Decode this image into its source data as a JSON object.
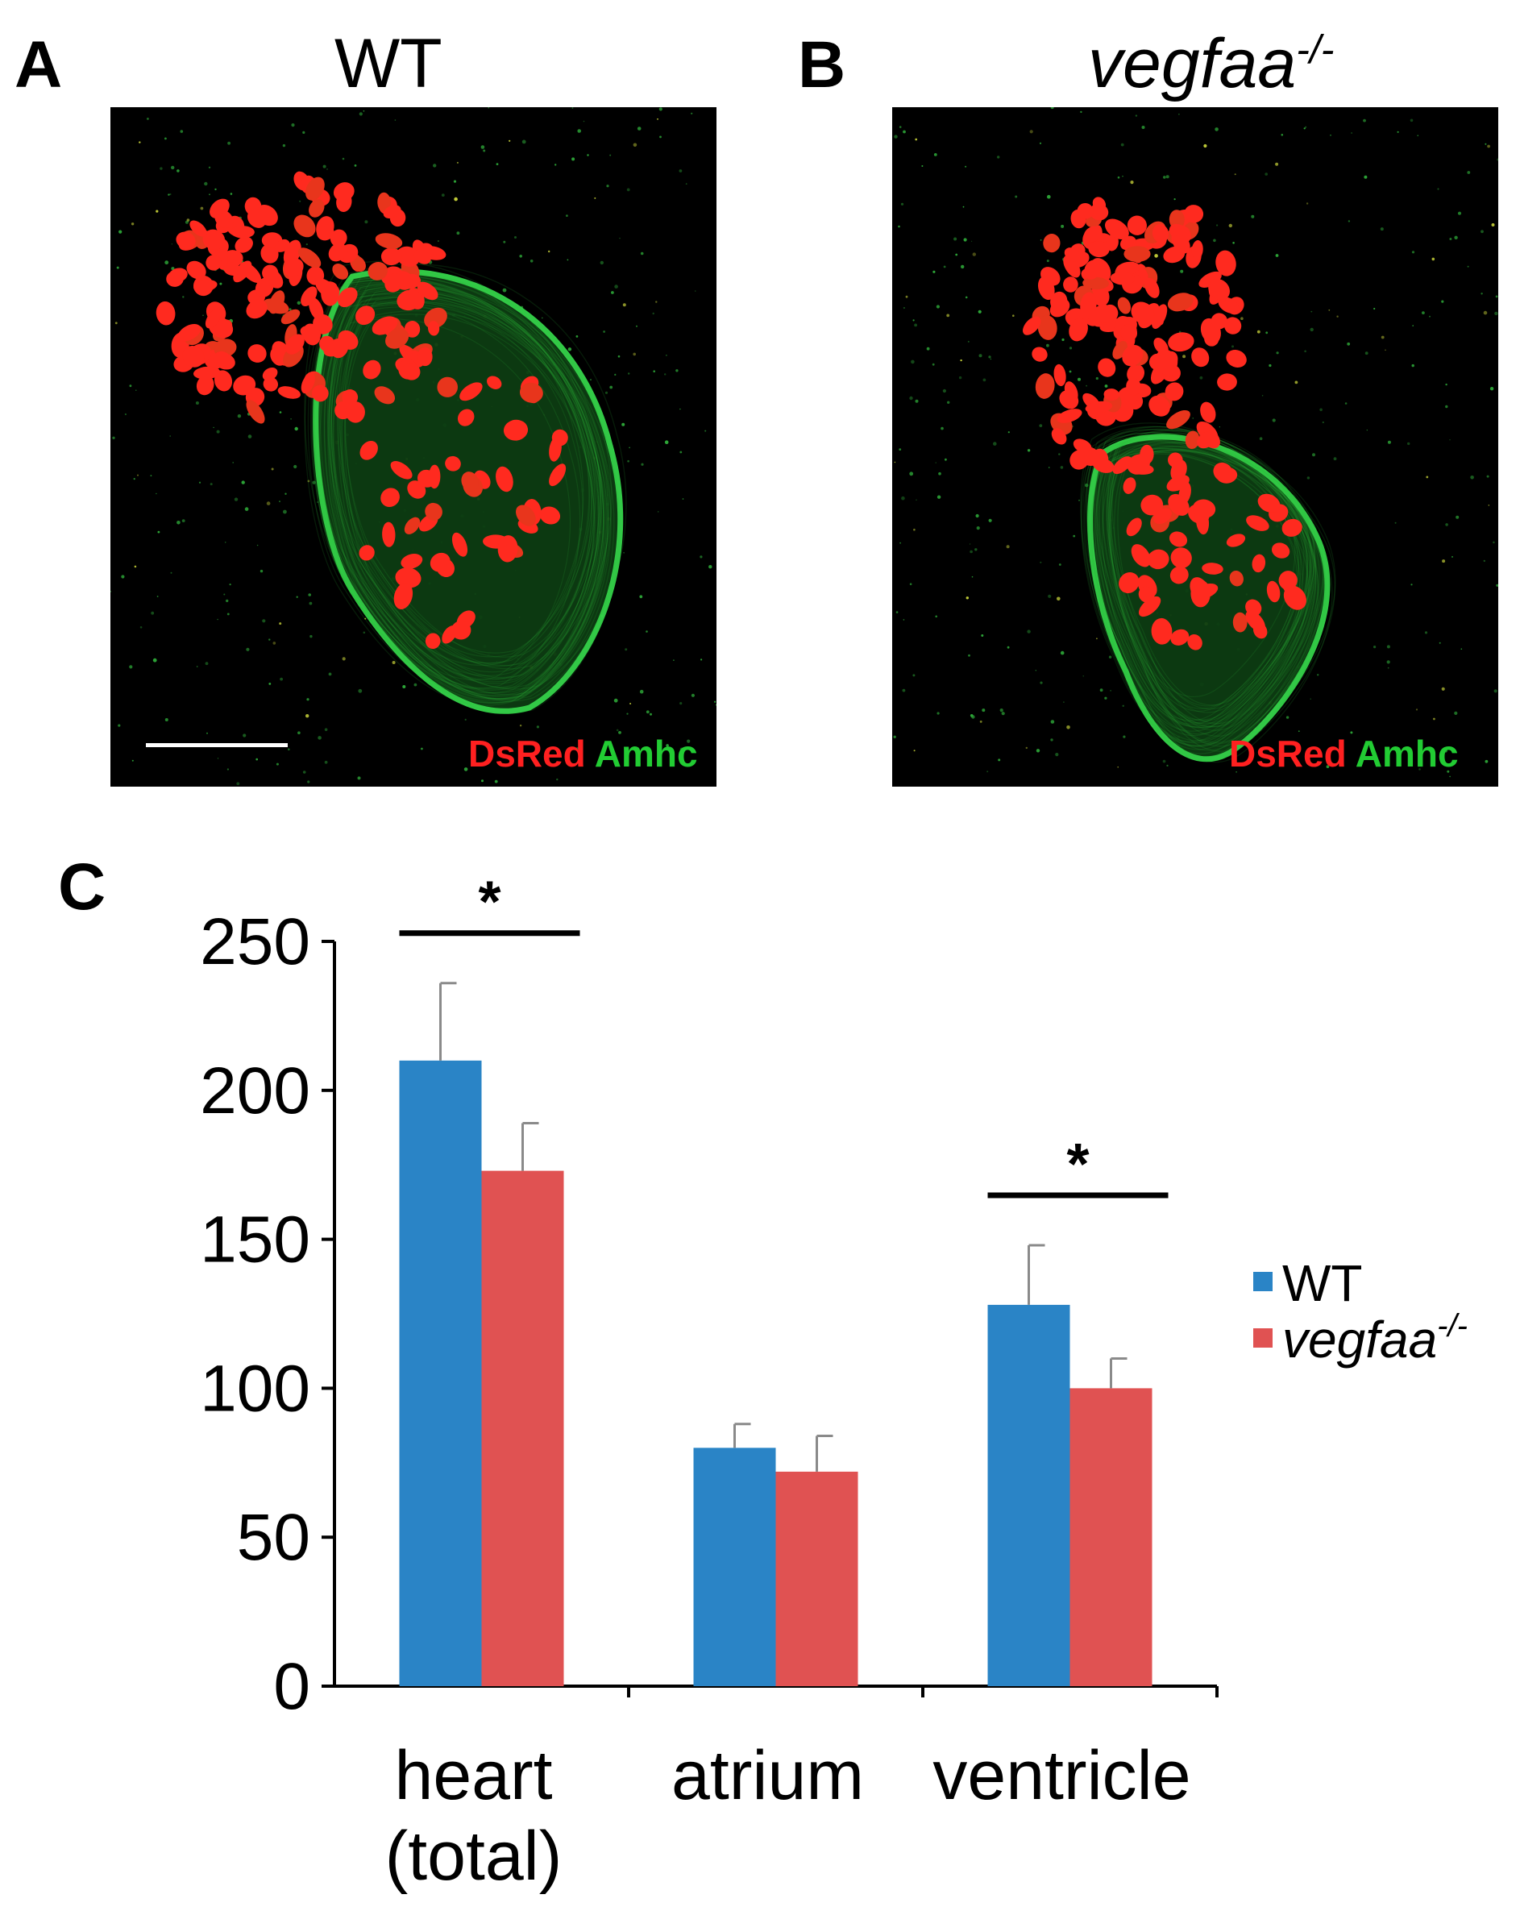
{
  "panels": {
    "a": {
      "letter": "A",
      "title": "WT",
      "stain_red": "DsRed",
      "stain_green": "Amhc"
    },
    "b": {
      "letter": "B",
      "title_base": "vegfaa",
      "title_sup": "-/-",
      "stain_red": "DsRed",
      "stain_green": "Amhc"
    },
    "c": {
      "letter": "C"
    }
  },
  "chart_data": {
    "type": "bar",
    "categories": [
      "heart (total)",
      "atrium",
      "ventricle"
    ],
    "category_lines": [
      [
        "heart",
        "(total)"
      ],
      [
        "atrium"
      ],
      [
        "ventricle"
      ]
    ],
    "series": [
      {
        "name": "WT",
        "color": "#2a84c6",
        "values": [
          210,
          80,
          128
        ],
        "errors": [
          26,
          8,
          20
        ]
      },
      {
        "name": "vegfaa-/-",
        "name_base": "vegfaa",
        "name_sup": "-/-",
        "color": "#e05252",
        "values": [
          173,
          72,
          100
        ],
        "errors": [
          16,
          12,
          10
        ]
      }
    ],
    "ylim": [
      0,
      250
    ],
    "yticks": [
      0,
      50,
      100,
      150,
      200,
      250
    ],
    "significance": [
      {
        "category_index": 0,
        "label": "*"
      },
      {
        "category_index": 2,
        "label": "*"
      }
    ],
    "legend_position": "right",
    "grid": false
  }
}
